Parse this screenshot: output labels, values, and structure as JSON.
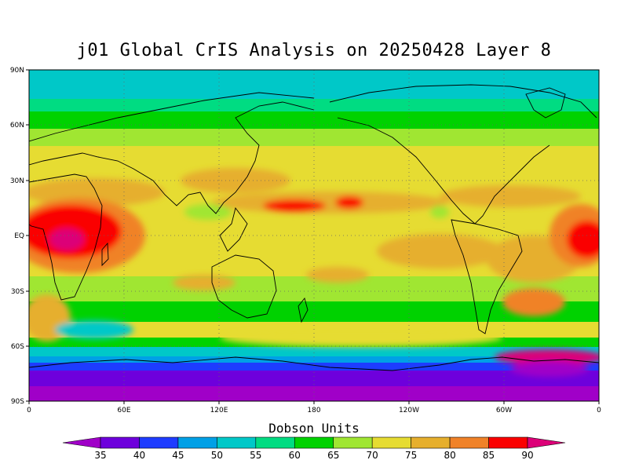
{
  "title": "j01 Global CrIS Analysis on 20250428 Layer 8",
  "colorbar_title": "Dobson Units",
  "lat_ticks": [
    "90N",
    "60N",
    "30N",
    "EQ",
    "30S",
    "60S",
    "90S"
  ],
  "lon_ticks": [
    "0",
    "60E",
    "120E",
    "180",
    "120W",
    "60W",
    "0"
  ],
  "colorbar": {
    "values": [
      "35",
      "40",
      "45",
      "50",
      "55",
      "60",
      "65",
      "70",
      "75",
      "80",
      "85",
      "90"
    ],
    "colors": [
      "#a000c8",
      "#6e00dc",
      "#1e3cff",
      "#00a0e6",
      "#00c8c8",
      "#00dc82",
      "#00d200",
      "#a0e632",
      "#e6dc32",
      "#e6af2d",
      "#f08228",
      "#fa0000",
      "#dc0078"
    ]
  }
}
